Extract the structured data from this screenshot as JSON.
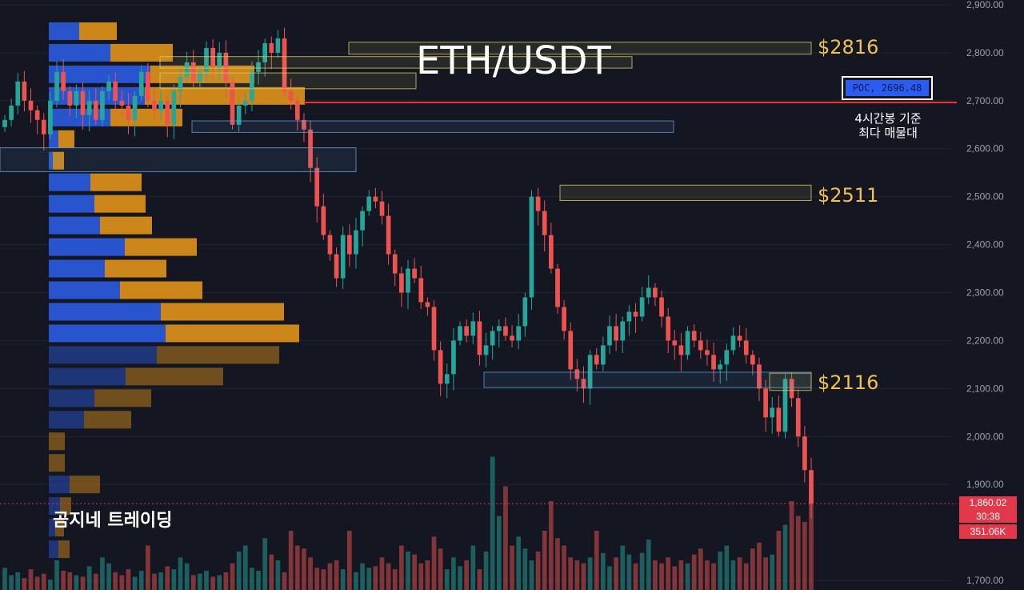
{
  "page_title": "ETH/USDT",
  "watermark": "곰지네 트레이딩",
  "levels": [
    {
      "label": "$2816",
      "price": 2816
    },
    {
      "label": "$2511",
      "price": 2511
    },
    {
      "label": "$2116",
      "price": 2116
    }
  ],
  "poc": {
    "label": "POC, 2696.48",
    "price": 2696.48,
    "note_line1": "4시간봉 기준",
    "note_line2": "최다 매물대"
  },
  "current_price": {
    "price": "1,860.02",
    "countdown": "30:38",
    "volume": "351.06K"
  },
  "colors": {
    "up": "#26a69a",
    "down": "#ef5350",
    "level_box": "#d8c860",
    "poc_line": "#ff2a2a",
    "vp_buy": "#2a5ce0",
    "vp_sell": "#e0921a",
    "accent_label": "#f0c050"
  },
  "chart_data": {
    "type": "candlestick",
    "y_axis": {
      "min": 1680,
      "max": 2910,
      "ticks": [
        "2,900.00",
        "2,800.00",
        "2,700.00",
        "2,600.00",
        "2,500.00",
        "2,400.00",
        "2,300.00",
        "2,200.00",
        "2,100.00",
        "2,000.00",
        "1,900.00",
        "1,700.00"
      ],
      "tick_values": [
        2900,
        2800,
        2700,
        2600,
        2500,
        2400,
        2300,
        2200,
        2100,
        2000,
        1900,
        1700
      ]
    },
    "close_path": [
      2660,
      2690,
      2740,
      2700,
      2680,
      2660,
      2630,
      2700,
      2760,
      2720,
      2690,
      2720,
      2670,
      2700,
      2660,
      2720,
      2740,
      2700,
      2690,
      2660,
      2710,
      2760,
      2700,
      2680,
      2700,
      2650,
      2720,
      2750,
      2780,
      2740,
      2760,
      2810,
      2770,
      2800,
      2740,
      2650,
      2690,
      2700,
      2760,
      2780,
      2820,
      2800,
      2830,
      2720,
      2700,
      2660,
      2640,
      2560,
      2480,
      2420,
      2380,
      2330,
      2420,
      2380,
      2430,
      2470,
      2500,
      2490,
      2460,
      2380,
      2340,
      2300,
      2350,
      2330,
      2280,
      2270,
      2180,
      2110,
      2130,
      2200,
      2230,
      2210,
      2240,
      2170,
      2190,
      2220,
      2230,
      2210,
      2200,
      2230,
      2290,
      2500,
      2470,
      2420,
      2350,
      2270,
      2220,
      2140,
      2120,
      2100,
      2170,
      2150,
      2190,
      2230,
      2200,
      2240,
      2260,
      2250,
      2290,
      2310,
      2290,
      2250,
      2200,
      2190,
      2170,
      2220,
      2200,
      2180,
      2170,
      2140,
      2150,
      2180,
      2210,
      2200,
      2170,
      2150,
      2100,
      2040,
      2060,
      2010,
      2120,
      2080,
      2000,
      1930,
      1860
    ],
    "volume": [
      15,
      10,
      12,
      8,
      14,
      9,
      11,
      7,
      20,
      13,
      12,
      10,
      9,
      16,
      11,
      22,
      18,
      12,
      10,
      14,
      9,
      13,
      30,
      11,
      12,
      16,
      14,
      22,
      18,
      10,
      11,
      13,
      9,
      10,
      12,
      18,
      26,
      30,
      15,
      13,
      35,
      24,
      20,
      12,
      40,
      30,
      28,
      22,
      15,
      14,
      18,
      20,
      14,
      40,
      12,
      18,
      15,
      16,
      22,
      18,
      14,
      30,
      26,
      24,
      18,
      20,
      36,
      28,
      14,
      22,
      16,
      20,
      30,
      14,
      26,
      90,
      50,
      70,
      30,
      36,
      28,
      20,
      26,
      40,
      60,
      35,
      30,
      22,
      20,
      18,
      22,
      40,
      25,
      16,
      22,
      30,
      24,
      18,
      25,
      34,
      20,
      18,
      22,
      16,
      20,
      18,
      24,
      28,
      20,
      18,
      26,
      30,
      20,
      22,
      18,
      28,
      32,
      22,
      24,
      40,
      44,
      60,
      50,
      46,
      70
    ]
  },
  "volume_profile": {
    "rows": [
      {
        "price": 2845,
        "buy": 38,
        "sell": 47
      },
      {
        "price": 2800,
        "buy": 77,
        "sell": 78
      },
      {
        "price": 2755,
        "buy": 127,
        "sell": 130
      },
      {
        "price": 2710,
        "buy": 120,
        "sell": 200
      },
      {
        "price": 2665,
        "buy": 77,
        "sell": 90
      },
      {
        "price": 2620,
        "buy": 12,
        "sell": 20
      },
      {
        "price": 2575,
        "buy": 5,
        "sell": 14
      },
      {
        "price": 2530,
        "buy": 52,
        "sell": 64
      },
      {
        "price": 2485,
        "buy": 57,
        "sell": 64
      },
      {
        "price": 2440,
        "buy": 64,
        "sell": 65
      },
      {
        "price": 2395,
        "buy": 95,
        "sell": 90
      },
      {
        "price": 2350,
        "buy": 70,
        "sell": 77
      },
      {
        "price": 2305,
        "buy": 89,
        "sell": 103
      },
      {
        "price": 2260,
        "buy": 140,
        "sell": 154
      },
      {
        "price": 2215,
        "buy": 146,
        "sell": 167
      },
      {
        "price": 2170,
        "buy": 135,
        "sell": 153
      },
      {
        "price": 2125,
        "buy": 96,
        "sell": 122
      },
      {
        "price": 2080,
        "buy": 57,
        "sell": 71
      },
      {
        "price": 2035,
        "buy": 44,
        "sell": 59
      },
      {
        "price": 1990,
        "buy": 0,
        "sell": 20
      },
      {
        "price": 1945,
        "buy": 0,
        "sell": 20
      },
      {
        "price": 1900,
        "buy": 26,
        "sell": 38
      },
      {
        "price": 1855,
        "buy": 14,
        "sell": 14
      },
      {
        "price": 1810,
        "buy": 8,
        "sell": 11
      },
      {
        "price": 1765,
        "buy": 12,
        "sell": 14
      }
    ]
  }
}
